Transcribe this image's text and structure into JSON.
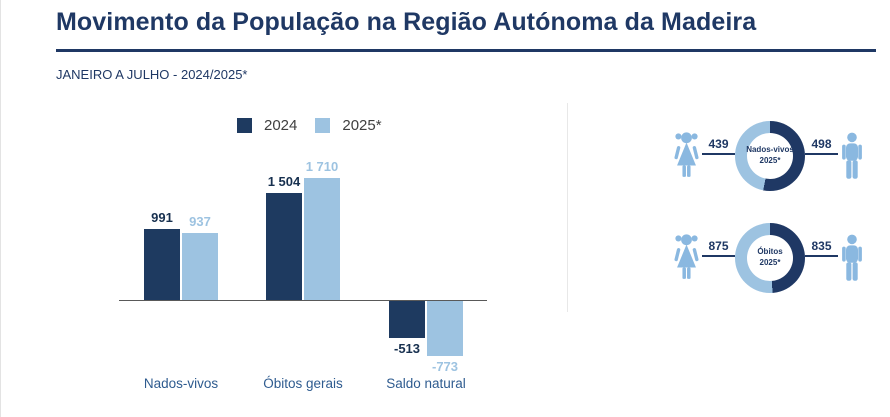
{
  "page": {
    "title": "Movimento da População na Região Autónoma da Madeira",
    "subtitle": "JANEIRO A JULHO - 2024/2025*"
  },
  "colors": {
    "navy": "#1F3864",
    "series_2024": "#1E3A60",
    "series_2025": "#9DC3E1",
    "icon_blue": "#8AB8E0",
    "category_label": "#2E5B8F",
    "legend_text": "#404040",
    "axis_line": "#595959"
  },
  "chart_data": [
    {
      "type": "bar",
      "title": "",
      "categories": [
        "Nados-vivos",
        "Óbitos gerais",
        "Saldo natural"
      ],
      "series": [
        {
          "name": "2024",
          "color": "#1E3A60",
          "values": [
            991,
            1504,
            -513
          ],
          "labels": [
            "991",
            "1 504",
            "-513"
          ]
        },
        {
          "name": "2025*",
          "color": "#9DC3E1",
          "values": [
            937,
            1710,
            -773
          ],
          "labels": [
            "937",
            "1 710",
            "-773"
          ]
        }
      ],
      "ylim": [
        -900,
        1900
      ],
      "grid": false,
      "legend_position": "top"
    },
    {
      "type": "pie",
      "name": "nados-vivos-2025",
      "center_label_line1": "Nados-vivos",
      "center_label_line2": "2025*",
      "slices": [
        {
          "label": "feminino",
          "value": 439,
          "display": "439",
          "color": "#9DC3E1"
        },
        {
          "label": "masculino",
          "value": 498,
          "display": "498",
          "color": "#1F3864"
        }
      ]
    },
    {
      "type": "pie",
      "name": "obitos-2025",
      "center_label_line1": "Óbitos",
      "center_label_line2": "2025*",
      "slices": [
        {
          "label": "feminino",
          "value": 875,
          "display": "875",
          "color": "#9DC3E1"
        },
        {
          "label": "masculino",
          "value": 835,
          "display": "835",
          "color": "#1F3864"
        }
      ]
    }
  ]
}
